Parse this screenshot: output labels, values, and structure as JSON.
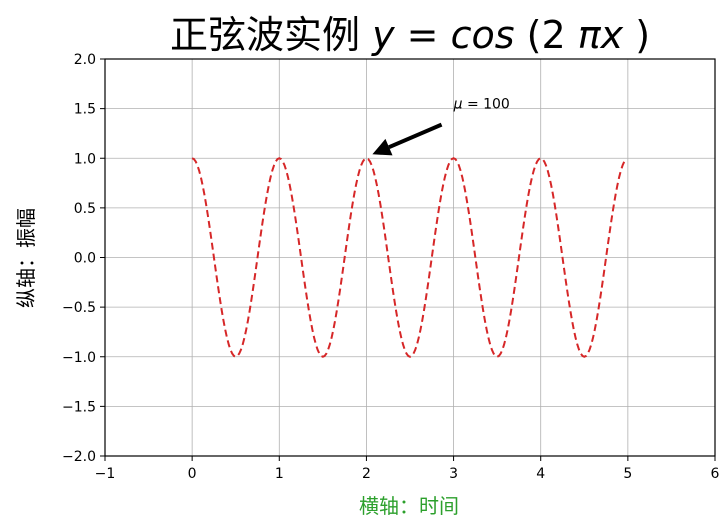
{
  "chart_data": {
    "type": "line",
    "title": {
      "prefix": "正弦波实例 ",
      "formula": [
        {
          "text": "y",
          "italic": true
        },
        {
          "text": " = ",
          "italic": false
        },
        {
          "text": "cos",
          "italic": true
        },
        {
          "text": "(2",
          "italic": false
        },
        {
          "text": "πx",
          "italic": true
        },
        {
          "text": ")",
          "italic": false
        }
      ]
    },
    "xlabel": "横轴：时间",
    "ylabel": "纵轴：振幅",
    "xlim": [
      -1,
      6
    ],
    "ylim": [
      -2.0,
      2.0
    ],
    "x_ticks": [
      -1,
      0,
      1,
      2,
      3,
      4,
      5,
      6
    ],
    "y_ticks": [
      -2.0,
      -1.5,
      -1.0,
      -0.5,
      0.0,
      0.5,
      1.0,
      1.5,
      2.0
    ],
    "x_tick_labels": [
      "−1",
      "0",
      "1",
      "2",
      "3",
      "4",
      "5",
      "6"
    ],
    "y_tick_labels": [
      "−2.0",
      "−1.5",
      "−1.0",
      "−0.5",
      "0.0",
      "0.5",
      "1.0",
      "1.5",
      "2.0"
    ],
    "grid": true,
    "series": [
      {
        "function": "cos(2πx)",
        "x_start": 0,
        "x_end": 4.95,
        "x_step": 0.02,
        "color": "#d62728",
        "line_style": "dashed"
      }
    ],
    "annotation": {
      "text_parts": [
        {
          "text": "μ",
          "italic": true
        },
        {
          "text": " = 100",
          "italic": false
        }
      ],
      "arrow_target": [
        2,
        1.0
      ],
      "text_anchor": [
        3.0,
        1.5
      ]
    },
    "colors": {
      "line": "#d62728",
      "xlabel": "#2ca02c",
      "ylabel": "#000000",
      "grid": "#b0b0b0",
      "axes": "#000000"
    }
  }
}
